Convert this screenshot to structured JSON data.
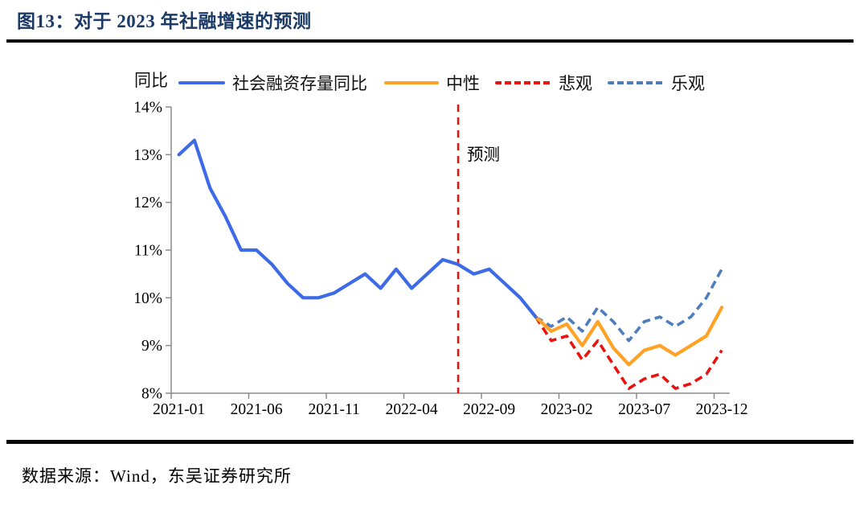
{
  "header": {
    "title": "图13：对于 2023 年社融增速的预测"
  },
  "footer": {
    "source": "数据来源：Wind，东吴证券研究所"
  },
  "chart_data": {
    "type": "line",
    "unit_label": "同比",
    "ylim": [
      8,
      14
    ],
    "y_tick_labels": [
      "14%",
      "13%",
      "12%",
      "11%",
      "10%",
      "9%",
      "8%"
    ],
    "x_tick_labels": [
      "2021-01",
      "2021-06",
      "2021-11",
      "2022-04",
      "2022-09",
      "2023-02",
      "2023-07",
      "2023-12"
    ],
    "x_range_months": [
      "2021-01",
      "2023-12"
    ],
    "grid": "off",
    "legend_position": "top",
    "annotation": {
      "label": "预测",
      "month": "2022-07",
      "line_color": "#E8120E"
    },
    "axis_color": "#8A8A8A",
    "series": [
      {
        "name": "社会融资存量同比",
        "color": "#3D6BE8",
        "dash": false,
        "start": "2021-01",
        "values": [
          13.0,
          13.3,
          12.3,
          11.7,
          11.0,
          11.0,
          10.7,
          10.3,
          10.0,
          10.0,
          10.1,
          10.3,
          10.5,
          10.2,
          10.6,
          10.2,
          10.5,
          10.8,
          10.7,
          10.5,
          10.6,
          10.3,
          10.0,
          9.6
        ]
      },
      {
        "name": "中性",
        "color": "#FFA226",
        "dash": false,
        "start": "2022-12",
        "values": [
          9.6,
          9.3,
          9.45,
          9.0,
          9.5,
          8.95,
          8.6,
          8.9,
          9.0,
          8.8,
          9.0,
          9.2,
          9.8
        ]
      },
      {
        "name": "悲观",
        "color": "#E8120E",
        "dash": true,
        "start": "2022-12",
        "values": [
          9.6,
          9.1,
          9.2,
          8.7,
          9.1,
          8.6,
          8.1,
          8.3,
          8.4,
          8.1,
          8.2,
          8.4,
          8.9
        ]
      },
      {
        "name": "乐观",
        "color": "#4E7DBE",
        "dash": true,
        "start": "2022-12",
        "values": [
          9.6,
          9.4,
          9.6,
          9.3,
          9.8,
          9.5,
          9.1,
          9.5,
          9.6,
          9.4,
          9.6,
          10.0,
          10.6
        ]
      }
    ]
  }
}
